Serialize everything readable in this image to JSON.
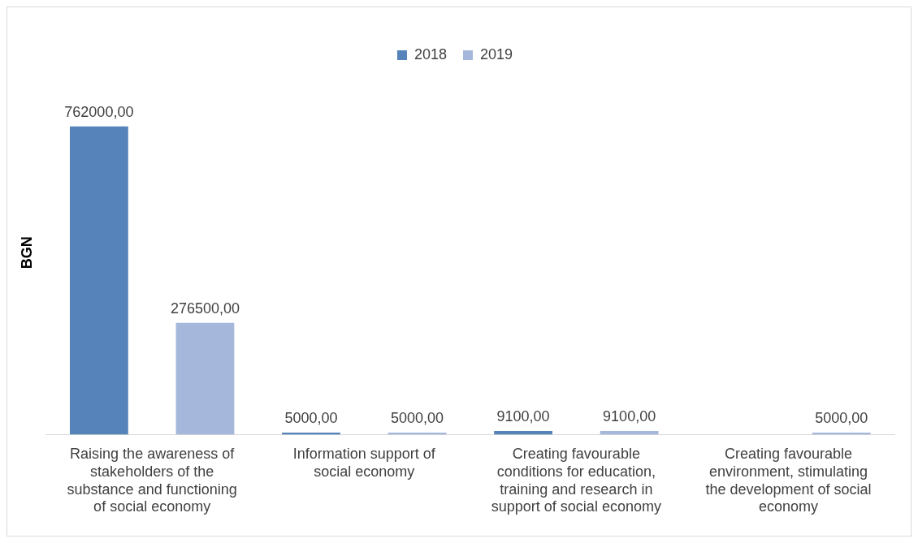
{
  "chart_data": {
    "type": "bar",
    "ylabel": "BGN",
    "categories": [
      "Raising the awareness of stakeholders of the substance and functioning of social economy",
      "Information support of social economy",
      "Creating favourable conditions for education, training and research in support of social economy",
      "Creating favourable environment, stimulating the development of social economy"
    ],
    "series": [
      {
        "name": "2018",
        "color": "#5683b9",
        "values": [
          762000,
          5000,
          9100,
          null
        ],
        "value_labels": [
          "762000,00",
          "5000,00",
          "9100,00",
          null
        ]
      },
      {
        "name": "2019",
        "color": "#a5b8dc",
        "values": [
          276500,
          5000,
          9100,
          5000
        ],
        "value_labels": [
          "276500,00",
          "5000,00",
          "9100,00",
          "5000,00"
        ]
      }
    ],
    "legend": "top",
    "grid": false,
    "tick_labels": "x"
  }
}
